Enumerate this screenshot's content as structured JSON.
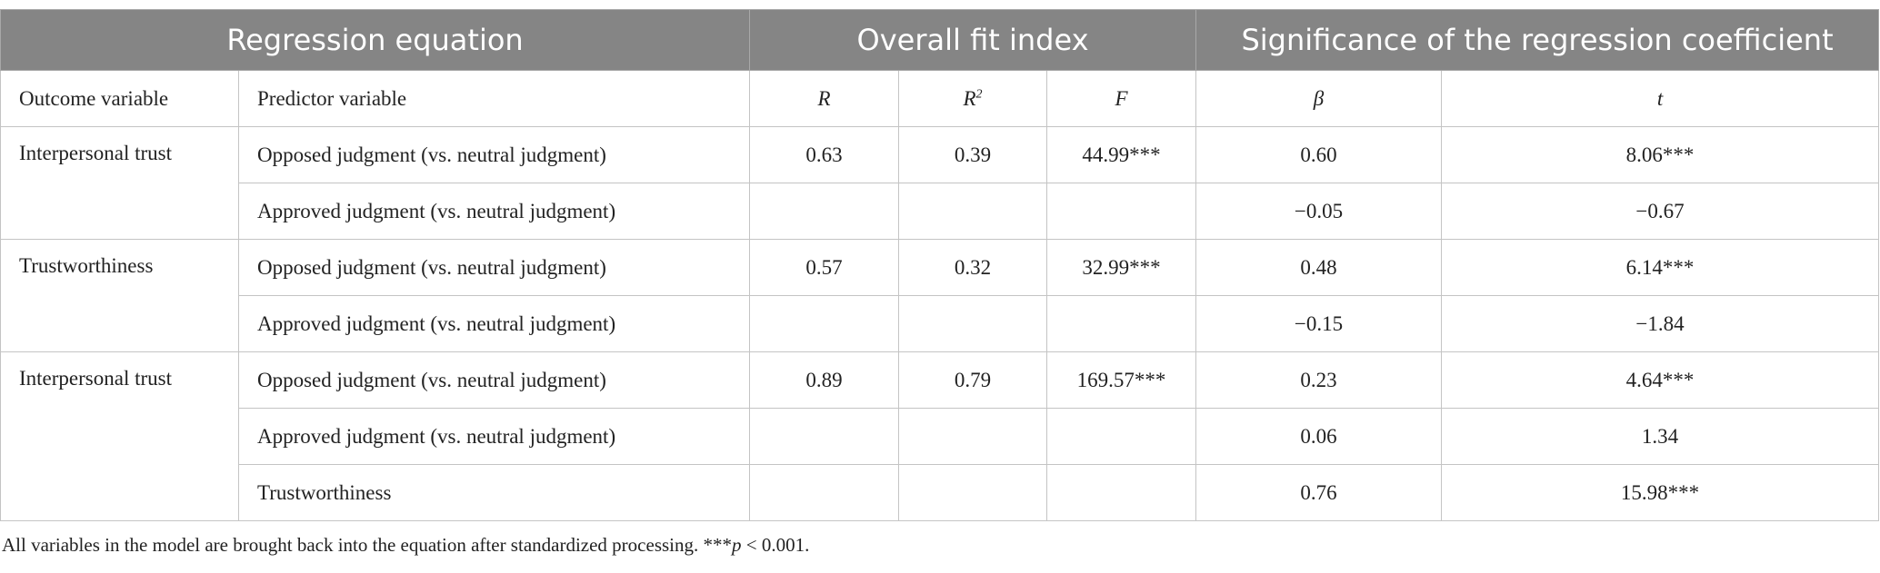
{
  "table": {
    "groups": [
      "Regression equation",
      "Overall fit index",
      "Significance of the regression coefficient"
    ],
    "columns": [
      {
        "text": "Outcome variable"
      },
      {
        "text": "Predictor variable"
      },
      {
        "text": "R"
      },
      {
        "text": "R",
        "sup": "2"
      },
      {
        "text": "F"
      },
      {
        "text": "β"
      },
      {
        "text": "t"
      }
    ],
    "blocks": [
      {
        "outcome": "Interpersonal trust",
        "rows": [
          {
            "predictor": "Opposed judgment (vs. neutral judgment)",
            "R": "0.63",
            "R2": "0.39",
            "F": "44.99***",
            "beta": "0.60",
            "t": "8.06***"
          },
          {
            "predictor": "Approved judgment (vs. neutral judgment)",
            "beta": "−0.05",
            "t": "−0.67"
          }
        ]
      },
      {
        "outcome": "Trustworthiness",
        "rows": [
          {
            "predictor": "Opposed judgment (vs. neutral judgment)",
            "R": "0.57",
            "R2": "0.32",
            "F": "32.99***",
            "beta": "0.48",
            "t": "6.14***"
          },
          {
            "predictor": "Approved judgment (vs. neutral judgment)",
            "beta": "−0.15",
            "t": "−1.84"
          }
        ]
      },
      {
        "outcome": "Interpersonal trust",
        "rows": [
          {
            "predictor": "Opposed judgment (vs. neutral judgment)",
            "R": "0.89",
            "R2": "0.79",
            "F": "169.57***",
            "beta": "0.23",
            "t": "4.64***"
          },
          {
            "predictor": "Approved judgment (vs. neutral judgment)",
            "beta": "0.06",
            "t": "1.34"
          },
          {
            "predictor": "Trustworthiness",
            "beta": "0.76",
            "t": "15.98***"
          }
        ]
      }
    ],
    "footnote": [
      "All variables in the model are brought back into the equation after standardized processing. ***",
      "p",
      " < 0.001."
    ]
  }
}
